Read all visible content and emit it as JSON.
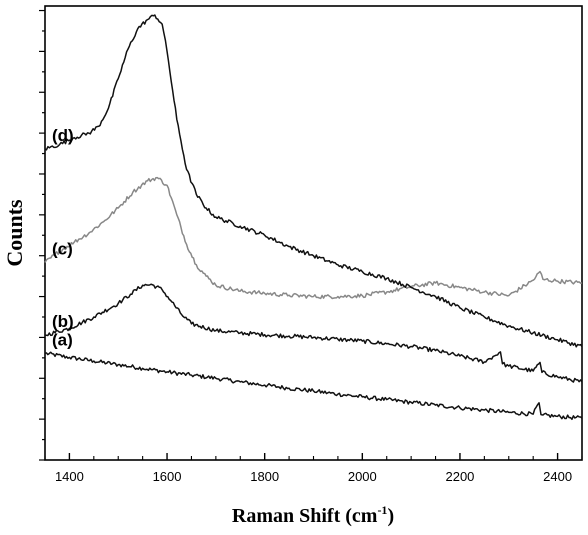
{
  "chart_data": {
    "type": "line",
    "title": "",
    "xlabel": "Raman Shift (cm",
    "xlabel_sup": "-1",
    "xlabel_close": ")",
    "ylabel": "Counts",
    "xlim": [
      1350,
      2450
    ],
    "ylim": [
      0,
      100
    ],
    "x_ticks": [
      1400,
      1600,
      1800,
      2000,
      2200,
      2400
    ],
    "x_tick_labels": [
      "1400",
      "1600",
      "1800",
      "2000",
      "2200",
      "2400"
    ],
    "y_tick_labels_shown": false,
    "grid": false,
    "legend": "none",
    "series": [
      {
        "label": "(a)",
        "color": "#111111",
        "x": [
          1350,
          1400,
          1450,
          1500,
          1550,
          1600,
          1650,
          1700,
          1750,
          1800,
          1850,
          1900,
          1950,
          2000,
          2050,
          2100,
          2150,
          2200,
          2250,
          2300,
          2350,
          2362,
          2366,
          2370,
          2400,
          2450
        ],
        "y": [
          23.5,
          22.6,
          21.8,
          21.0,
          20.2,
          19.4,
          18.7,
          18.0,
          17.2,
          16.5,
          15.8,
          15.2,
          14.5,
          13.9,
          13.3,
          12.7,
          12.1,
          11.5,
          11.0,
          10.5,
          10.1,
          12.6,
          10.0,
          9.9,
          9.6,
          9.2
        ]
      },
      {
        "label": "(b)",
        "color": "#111111",
        "x": [
          1350,
          1400,
          1450,
          1500,
          1525,
          1550,
          1570,
          1590,
          1610,
          1630,
          1650,
          1700,
          1750,
          1800,
          1850,
          1900,
          1950,
          2000,
          2050,
          2100,
          2150,
          2200,
          2250,
          2283,
          2287,
          2300,
          2350,
          2364,
          2368,
          2400,
          2450
        ],
        "y": [
          27.5,
          29.0,
          31.5,
          34.5,
          36.5,
          38.5,
          38.6,
          37.5,
          34.8,
          32.0,
          30.0,
          28.5,
          28.0,
          27.6,
          27.3,
          27.0,
          26.6,
          26.2,
          25.6,
          25.0,
          24.1,
          22.9,
          21.6,
          23.8,
          21.2,
          20.7,
          19.6,
          21.5,
          19.3,
          18.3,
          17.2
        ]
      },
      {
        "label": "(c)",
        "color": "#888888",
        "x": [
          1350,
          1380,
          1410,
          1440,
          1470,
          1500,
          1530,
          1560,
          1580,
          1600,
          1620,
          1640,
          1660,
          1680,
          1700,
          1750,
          1800,
          1850,
          1900,
          1950,
          2000,
          2050,
          2100,
          2150,
          2200,
          2250,
          2300,
          2350,
          2364,
          2370,
          2400,
          2450
        ],
        "y": [
          43.5,
          46.0,
          48.0,
          50.0,
          52.5,
          55.5,
          59.0,
          61.5,
          62.2,
          60.5,
          54.0,
          47.5,
          43.0,
          40.5,
          38.5,
          37.2,
          36.7,
          36.3,
          36.0,
          36.0,
          36.2,
          37.0,
          38.2,
          39.0,
          38.0,
          37.0,
          36.2,
          39.6,
          41.5,
          39.8,
          39.4,
          39.0
        ]
      },
      {
        "label": "(d)",
        "color": "#111111",
        "x": [
          1350,
          1380,
          1410,
          1440,
          1460,
          1480,
          1500,
          1520,
          1540,
          1560,
          1575,
          1590,
          1600,
          1620,
          1640,
          1660,
          1680,
          1700,
          1750,
          1800,
          1850,
          1900,
          1950,
          2000,
          2050,
          2100,
          2150,
          2200,
          2250,
          2300,
          2350,
          2400,
          2450
        ],
        "y": [
          68.5,
          69.5,
          71.0,
          72.0,
          73.5,
          77.5,
          84.0,
          90.5,
          95.0,
          97.0,
          98.0,
          96.0,
          90.0,
          75.0,
          64.0,
          58.5,
          55.5,
          53.5,
          51.5,
          49.5,
          47.0,
          45.0,
          43.0,
          41.5,
          40.0,
          38.0,
          36.0,
          33.5,
          31.5,
          29.5,
          28.0,
          26.5,
          25.0
        ]
      }
    ]
  }
}
